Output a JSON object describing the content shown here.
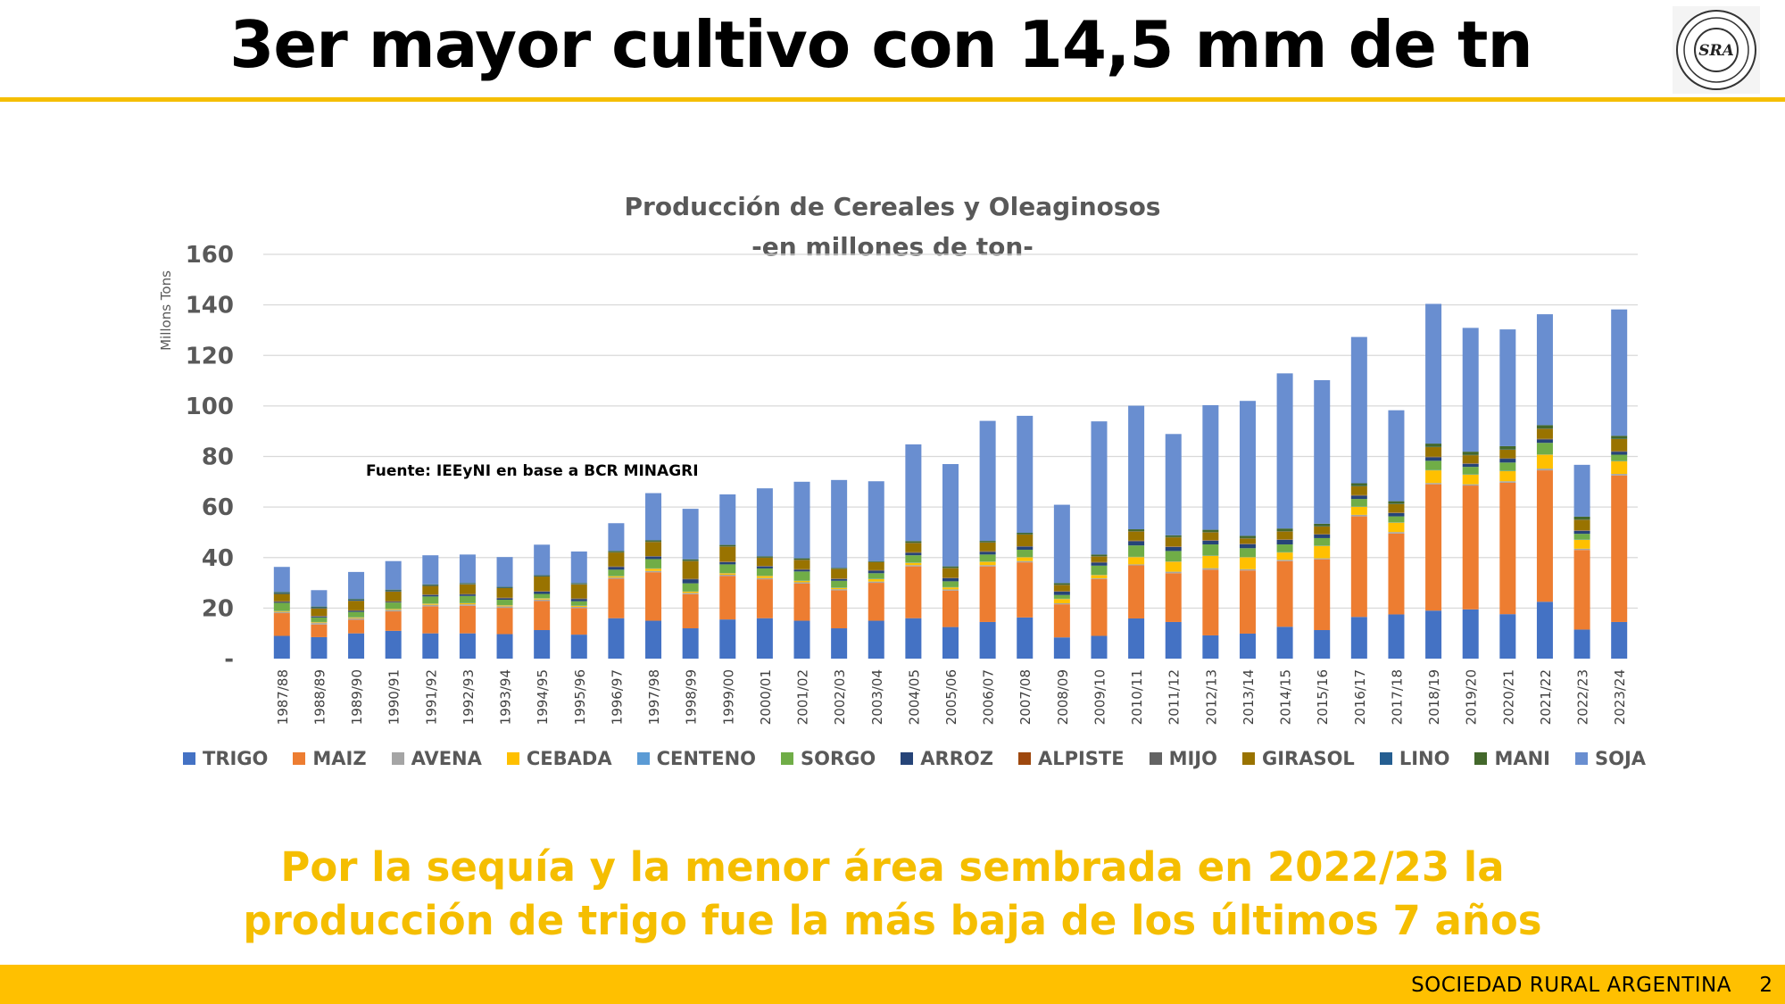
{
  "slide": {
    "title": "3er mayor cultivo con 14,5 mm de tn",
    "logo_text": "SRA",
    "source_note": "Fuente: IEEyNI en base a BCR MINAGRI",
    "note_line1": "Por la sequía y la menor área sembrada en 2022/23 la",
    "note_line2": "producción de trigo  fue la más baja de los últimos 7 años",
    "footer_text": "SOCIEDAD RURAL ARGENTINA",
    "page_number": "2",
    "accent_color": "#f5be00"
  },
  "chart_data": {
    "type": "bar",
    "stacked": true,
    "title": "Producción de Cereales y Oleaginosos",
    "subtitle": "-en millones de ton-",
    "ylabel": "Millons Tons",
    "xlabel": "",
    "ylim": [
      0,
      160
    ],
    "yticks": [
      "-",
      "20",
      "40",
      "60",
      "80",
      "100",
      "120",
      "140",
      "160"
    ],
    "grid": true,
    "legend_position": "bottom",
    "categories": [
      "1987/88",
      "1988/89",
      "1989/90",
      "1990/91",
      "1991/92",
      "1992/93",
      "1993/94",
      "1994/95",
      "1995/96",
      "1996/97",
      "1997/98",
      "1998/99",
      "1999/00",
      "2000/01",
      "2001/02",
      "2002/03",
      "2003/04",
      "2004/05",
      "2005/06",
      "2006/07",
      "2007/08",
      "2008/09",
      "2009/10",
      "2010/11",
      "2011/12",
      "2012/13",
      "2013/14",
      "2014/15",
      "2015/16",
      "2016/17",
      "2017/18",
      "2018/19",
      "2019/20",
      "2020/21",
      "2021/22",
      "2022/23",
      "2023/24"
    ],
    "series": [
      {
        "name": "TRIGO",
        "color": "#4472c4",
        "values": [
          9,
          8.5,
          10,
          11,
          10,
          10,
          9.7,
          11.3,
          9.5,
          16,
          15,
          12,
          15.5,
          16,
          15,
          12,
          15,
          16,
          12.5,
          14.5,
          16.3,
          8.4,
          9,
          15.9,
          14.5,
          9.2,
          9.9,
          12.6,
          11.3,
          16.5,
          17.5,
          19,
          19.5,
          17.6,
          22.5,
          11.5,
          14.5
        ]
      },
      {
        "name": "MAIZ",
        "color": "#ed7d31",
        "values": [
          9,
          5,
          5.4,
          7.7,
          10.7,
          10.9,
          10.4,
          11.5,
          10.5,
          15.6,
          19.2,
          13.5,
          17.2,
          15.4,
          14.7,
          15,
          15,
          20.5,
          14.4,
          22,
          21.8,
          13.1,
          22.5,
          21,
          19.3,
          26,
          25,
          26,
          28,
          39.8,
          32,
          50,
          49,
          52,
          52,
          31.5,
          58
        ]
      },
      {
        "name": "AVENA",
        "color": "#a5a5a5",
        "values": [
          0.5,
          0.6,
          0.6,
          0.6,
          0.6,
          0.6,
          0.6,
          0.6,
          0.5,
          0.5,
          0.5,
          0.5,
          0.5,
          0.5,
          0.5,
          0.5,
          0.5,
          0.5,
          0.5,
          0.5,
          0.5,
          0.4,
          0.3,
          0.4,
          0.6,
          0.6,
          0.5,
          0.5,
          0.4,
          0.6,
          0.6,
          0.5,
          0.5,
          0.6,
          0.7,
          0.5,
          0.6
        ]
      },
      {
        "name": "CEBADA",
        "color": "#ffc000",
        "values": [
          0.3,
          0.3,
          0.3,
          0.3,
          0.4,
          0.4,
          0.4,
          0.4,
          0.4,
          0.5,
          0.9,
          0.5,
          0.6,
          0.8,
          0.6,
          0.5,
          1,
          0.9,
          0.8,
          1.3,
          1.5,
          1.7,
          1.3,
          2.9,
          4,
          4.9,
          4.7,
          2.9,
          4.9,
          3.2,
          3.7,
          5,
          3.8,
          4,
          5.5,
          3.5,
          5
        ]
      },
      {
        "name": "CENTENO",
        "color": "#5b9bd5",
        "values": [
          0.1,
          0.1,
          0.1,
          0.1,
          0.1,
          0.1,
          0.1,
          0.1,
          0.1,
          0.1,
          0.1,
          0.1,
          0.1,
          0.1,
          0.1,
          0.1,
          0.1,
          0.1,
          0.1,
          0.1,
          0.1,
          0.1,
          0.1,
          0.1,
          0.1,
          0.1,
          0.1,
          0.1,
          0.1,
          0.1,
          0.1,
          0.1,
          0.1,
          0.1,
          0.1,
          0.1,
          0.1
        ]
      },
      {
        "name": "SORGO",
        "color": "#70ad47",
        "values": [
          3.2,
          1.8,
          2.1,
          2.5,
          2.8,
          2.8,
          2.1,
          1.7,
          1.7,
          2.5,
          3.7,
          3.2,
          3.4,
          2.9,
          3.6,
          2.7,
          2.2,
          2.9,
          2.3,
          2.8,
          2.9,
          1.5,
          3.6,
          4.5,
          4.1,
          4.4,
          3.5,
          3.1,
          3,
          3,
          2.4,
          3.7,
          3,
          3.3,
          4.6,
          2.3,
          2.5
        ]
      },
      {
        "name": "ARROZ",
        "color": "#264478",
        "values": [
          0.4,
          0.4,
          0.4,
          0.3,
          0.6,
          0.6,
          0.6,
          0.9,
          0.9,
          1.1,
          1,
          1.6,
          0.9,
          0.8,
          0.7,
          0.7,
          1,
          1,
          1.2,
          1.1,
          1.2,
          1.3,
          1.2,
          1.7,
          1.6,
          1.5,
          1.6,
          1.8,
          1.4,
          1.3,
          1.3,
          1.4,
          1.2,
          1.5,
          1.4,
          1.2,
          1.2
        ]
      },
      {
        "name": "ALPISTE",
        "color": "#9e480e",
        "values": [
          0.1,
          0.1,
          0.1,
          0.1,
          0.1,
          0.1,
          0.1,
          0.1,
          0.1,
          0.1,
          0.1,
          0.1,
          0.1,
          0.1,
          0.1,
          0.1,
          0.1,
          0.1,
          0.1,
          0.1,
          0.1,
          0.1,
          0.1,
          0.1,
          0.1,
          0.1,
          0.1,
          0.1,
          0.1,
          0.1,
          0.1,
          0.1,
          0.1,
          0.1,
          0.1,
          0.1,
          0.1
        ]
      },
      {
        "name": "MIJO",
        "color": "#636363",
        "values": [
          0.1,
          0.1,
          0.1,
          0.1,
          0.1,
          0.1,
          0.1,
          0.1,
          0.1,
          0.1,
          0.1,
          0.1,
          0.1,
          0.1,
          0.1,
          0.1,
          0.1,
          0.1,
          0.1,
          0.1,
          0.1,
          0.1,
          0.1,
          0.1,
          0.1,
          0.1,
          0.1,
          0.1,
          0.1,
          0.1,
          0.1,
          0.1,
          0.1,
          0.1,
          0.1,
          0.1,
          0.1
        ]
      },
      {
        "name": "GIRASOL",
        "color": "#997300",
        "values": [
          2.9,
          3,
          3.8,
          3.9,
          3.4,
          3.8,
          3.8,
          5.8,
          5.6,
          5.5,
          5.6,
          7,
          6,
          3.2,
          3.7,
          3.8,
          3.2,
          3.7,
          3.8,
          3.5,
          4.6,
          2.5,
          2.3,
          3.7,
          3.6,
          3.1,
          2.1,
          3.2,
          3,
          3.5,
          3.4,
          3.8,
          3.2,
          3.4,
          4,
          4.2,
          4.8
        ]
      },
      {
        "name": "LINO",
        "color": "#255e91",
        "values": [
          0.4,
          0.4,
          0.4,
          0.4,
          0.3,
          0.2,
          0.2,
          0.2,
          0.2,
          0.1,
          0.1,
          0.1,
          0.1,
          0.1,
          0.1,
          0.1,
          0.1,
          0.1,
          0.1,
          0.1,
          0.1,
          0.1,
          0.1,
          0.1,
          0.1,
          0.1,
          0.1,
          0.1,
          0.1,
          0.1,
          0.1,
          0.1,
          0.1,
          0.1,
          0.1,
          0.1,
          0.1
        ]
      },
      {
        "name": "MANI",
        "color": "#43682b",
        "values": [
          0.3,
          0.3,
          0.3,
          0.3,
          0.3,
          0.3,
          0.3,
          0.3,
          0.3,
          0.5,
          0.5,
          0.6,
          0.5,
          0.5,
          0.5,
          0.3,
          0.3,
          0.6,
          0.6,
          0.5,
          0.6,
          0.6,
          0.6,
          0.7,
          0.7,
          0.9,
          0.9,
          1,
          1,
          1.1,
          1,
          1.3,
          1.3,
          1.3,
          1.3,
          1.1,
          1.2
        ]
      },
      {
        "name": "SOJA",
        "color": "#698ed0",
        "values": [
          10,
          6.5,
          10.7,
          11.3,
          11.5,
          11.3,
          11.8,
          12.1,
          12.5,
          11,
          18.7,
          20,
          20,
          26.9,
          30.3,
          34.8,
          31.6,
          38.3,
          40.5,
          47.5,
          46.3,
          31,
          52.7,
          48.9,
          40.1,
          49.3,
          53.4,
          61.4,
          56.8,
          57.9,
          36,
          55.3,
          49,
          46.2,
          43.9,
          20.5,
          50
        ]
      }
    ]
  }
}
